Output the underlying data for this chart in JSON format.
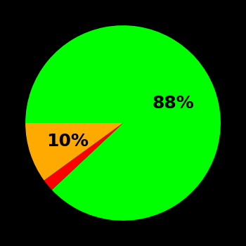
{
  "slices": [
    88,
    2,
    10
  ],
  "colors": [
    "#00ff00",
    "#ff0000",
    "#ffaa00"
  ],
  "labels": [
    "88%",
    "",
    "10%"
  ],
  "background_color": "#000000",
  "startangle": 180,
  "label_fontsize": 18,
  "label_fontweight": "bold",
  "label_radii": [
    0.55,
    0.0,
    0.6
  ]
}
